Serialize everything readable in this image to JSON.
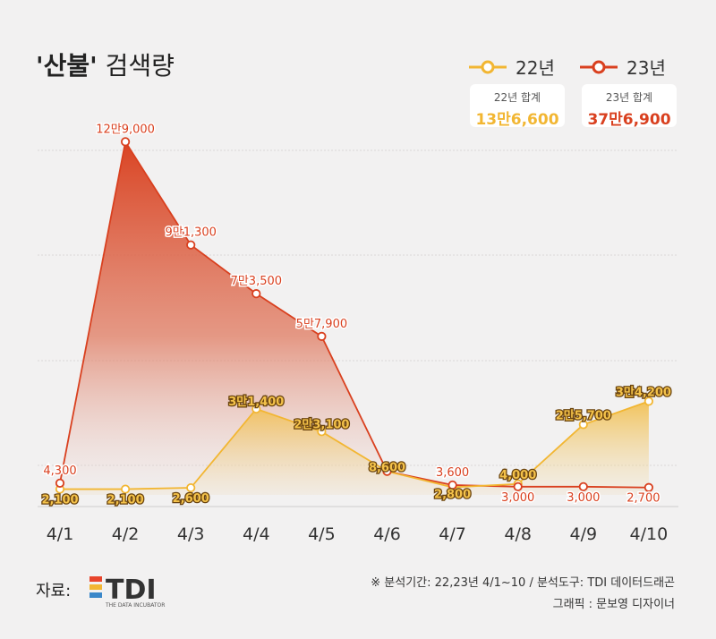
{
  "header": {
    "title_bold": "'산불'",
    "title_rest": " 검색량"
  },
  "legend": {
    "items": [
      {
        "label": "22년",
        "color": "#f2b632"
      },
      {
        "label": "23년",
        "color": "#d9401f"
      }
    ]
  },
  "totals": [
    {
      "label": "22년 합계",
      "value": "13만6,600",
      "color": "#f2b632"
    },
    {
      "label": "23년 합계",
      "value": "37만6,900",
      "color": "#d9401f"
    }
  ],
  "chart_data": {
    "type": "area",
    "categories": [
      "4/1",
      "4/2",
      "4/3",
      "4/4",
      "4/5",
      "4/6",
      "4/7",
      "4/8",
      "4/9",
      "4/10"
    ],
    "ylim": [
      0,
      135000
    ],
    "grid": true,
    "legend_position": "top-right",
    "series": [
      {
        "name": "22년",
        "color": "#f2b632",
        "values": [
          2100,
          2100,
          2600,
          31400,
          23100,
          8600,
          2800,
          4000,
          25700,
          34200
        ],
        "labels": [
          "2,100",
          "2,100",
          "2,600",
          "3만1,400",
          "2만3,100",
          "8,600",
          "2,800",
          "4,000",
          "2만5,700",
          "3만4,200"
        ]
      },
      {
        "name": "23년",
        "color": "#d9401f",
        "values": [
          4300,
          129000,
          91300,
          73500,
          57900,
          8600,
          3600,
          3000,
          3000,
          2700
        ],
        "labels": [
          "4,300",
          "12만9,000",
          "9만1,300",
          "7만3,500",
          "5만7,900",
          "",
          "3,600",
          "3,000",
          "3,000",
          "2,700"
        ]
      }
    ]
  },
  "footer": {
    "source_label": "자료:",
    "logo_text": "TDI",
    "logo_sub": "THE DATA INCUBATOR",
    "note_line1": "※ 분석기간: 22,23년 4/1~10 / 분석도구: TDI 데이터드래곤",
    "note_line2": "그래픽 : 문보영 디자이너"
  }
}
